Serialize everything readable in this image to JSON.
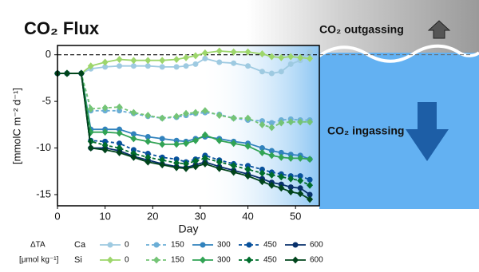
{
  "chart_data": {
    "type": "line",
    "title": "CO₂ Flux",
    "xlabel": "Day",
    "ylabel": "[mmolC m⁻² d⁻¹]",
    "annotations": [
      "CO₂ outgassing",
      "CO₂ ingassing"
    ],
    "legend_title": [
      "ΔTA",
      "[μmol kg⁻¹]"
    ],
    "legend_rows": [
      "Ca",
      "Si"
    ],
    "x": [
      0,
      2,
      5,
      7,
      10,
      13,
      16,
      19,
      22,
      25,
      27,
      29,
      31,
      34,
      37,
      40,
      43,
      45,
      47,
      49,
      51,
      53
    ],
    "xlim": [
      0,
      55
    ],
    "xticks": [
      0,
      10,
      20,
      30,
      40,
      50
    ],
    "ylim": [
      -16.2,
      1
    ],
    "yticks": [
      0,
      -5,
      -10,
      -15
    ],
    "hline": 0,
    "grid": false,
    "series": [
      {
        "name": "0",
        "color": "#9ecae1",
        "marker": "circle",
        "linestyle": "solid",
        "values": [
          -2,
          -2,
          -2,
          -1.5,
          -1.3,
          -1.2,
          -1.2,
          -1.2,
          -1.3,
          -1.3,
          -1.2,
          -1,
          -0.4,
          -0.8,
          -0.9,
          -1.2,
          -1.8,
          -2,
          -1.8,
          -1,
          -0.6,
          0.3
        ]
      },
      {
        "name": "150",
        "color": "#6baed6",
        "marker": "circle",
        "linestyle": "dashed",
        "values": [
          -2,
          -2,
          -2,
          -6,
          -6,
          -6,
          -6.3,
          -6.6,
          -6.8,
          -6.7,
          -6.5,
          -6.3,
          -6.2,
          -6.4,
          -6.8,
          -7,
          -7.1,
          -7.3,
          -7,
          -6.9,
          -7,
          -7
        ]
      },
      {
        "name": "300",
        "color": "#3182bd",
        "marker": "circle",
        "linestyle": "solid",
        "values": [
          -2,
          -2,
          -2,
          -8,
          -8,
          -8,
          -8.5,
          -8.8,
          -9,
          -9.2,
          -9.3,
          -9,
          -8.8,
          -9,
          -9.3,
          -9.5,
          -10,
          -10.3,
          -10.5,
          -10.7,
          -10.8,
          -11.2
        ]
      },
      {
        "name": "450",
        "color": "#08519c",
        "marker": "circle",
        "linestyle": "dashed",
        "values": [
          -2,
          -2,
          -2,
          -9.2,
          -9.3,
          -9.5,
          -10.2,
          -10.6,
          -11,
          -11.2,
          -11.5,
          -11.2,
          -10.8,
          -11.3,
          -11.7,
          -11.9,
          -12.3,
          -12.6,
          -12.8,
          -13,
          -13,
          -13.4
        ]
      },
      {
        "name": "600",
        "color": "#08306b",
        "marker": "circle",
        "linestyle": "solid",
        "values": [
          -2,
          -2,
          -2,
          -10,
          -10,
          -10.3,
          -10.9,
          -11.3,
          -11.7,
          -12,
          -12.1,
          -11.8,
          -11.5,
          -12,
          -12.4,
          -12.8,
          -13.3,
          -13.7,
          -13.9,
          -14.2,
          -14.3,
          -15
        ]
      },
      {
        "name": "0",
        "color": "#9dd66b",
        "marker": "diamond",
        "linestyle": "solid",
        "values": [
          -2,
          -2,
          -2,
          -1.2,
          -0.8,
          -0.5,
          -0.6,
          -0.6,
          -0.6,
          -0.5,
          -0.3,
          -0.1,
          0.2,
          0.4,
          0.3,
          0.3,
          0.1,
          -0.2,
          -0.3,
          -0.2,
          -0.3,
          -0.4
        ]
      },
      {
        "name": "150",
        "color": "#74c476",
        "marker": "diamond",
        "linestyle": "dashed",
        "values": [
          -2,
          -2,
          -2,
          -5.8,
          -5.7,
          -5.6,
          -6.2,
          -6.5,
          -6.8,
          -6.6,
          -6.3,
          -6.2,
          -6,
          -6.5,
          -6.8,
          -6.8,
          -7.5,
          -7.8,
          -7.3,
          -7.2,
          -7.2,
          -7.2
        ]
      },
      {
        "name": "300",
        "color": "#31a354",
        "marker": "diamond",
        "linestyle": "solid",
        "values": [
          -2,
          -2,
          -2,
          -8.3,
          -8.3,
          -8.4,
          -9,
          -9.3,
          -9.6,
          -9.6,
          -9.5,
          -9.2,
          -8.6,
          -9.2,
          -9.5,
          -9.8,
          -10.5,
          -10.8,
          -11,
          -11.1,
          -11.1,
          -11.2
        ]
      },
      {
        "name": "450",
        "color": "#006d2c",
        "marker": "diamond",
        "linestyle": "dashed",
        "values": [
          -2,
          -2,
          -2,
          -9.3,
          -9.7,
          -10,
          -10.6,
          -11,
          -11.3,
          -11.6,
          -11.7,
          -11.4,
          -11.1,
          -11.5,
          -11.9,
          -12.3,
          -12.7,
          -12.9,
          -13.1,
          -13.3,
          -13.5,
          -14
        ]
      },
      {
        "name": "600",
        "color": "#00441b",
        "marker": "diamond",
        "linestyle": "solid",
        "values": [
          -2,
          -2,
          -2,
          -10,
          -10.2,
          -10.5,
          -11,
          -11.5,
          -11.8,
          -12.1,
          -12.2,
          -12,
          -11.7,
          -12.2,
          -12.6,
          -13,
          -13.6,
          -14,
          -14.3,
          -14.7,
          -14.9,
          -15.5
        ]
      }
    ]
  }
}
